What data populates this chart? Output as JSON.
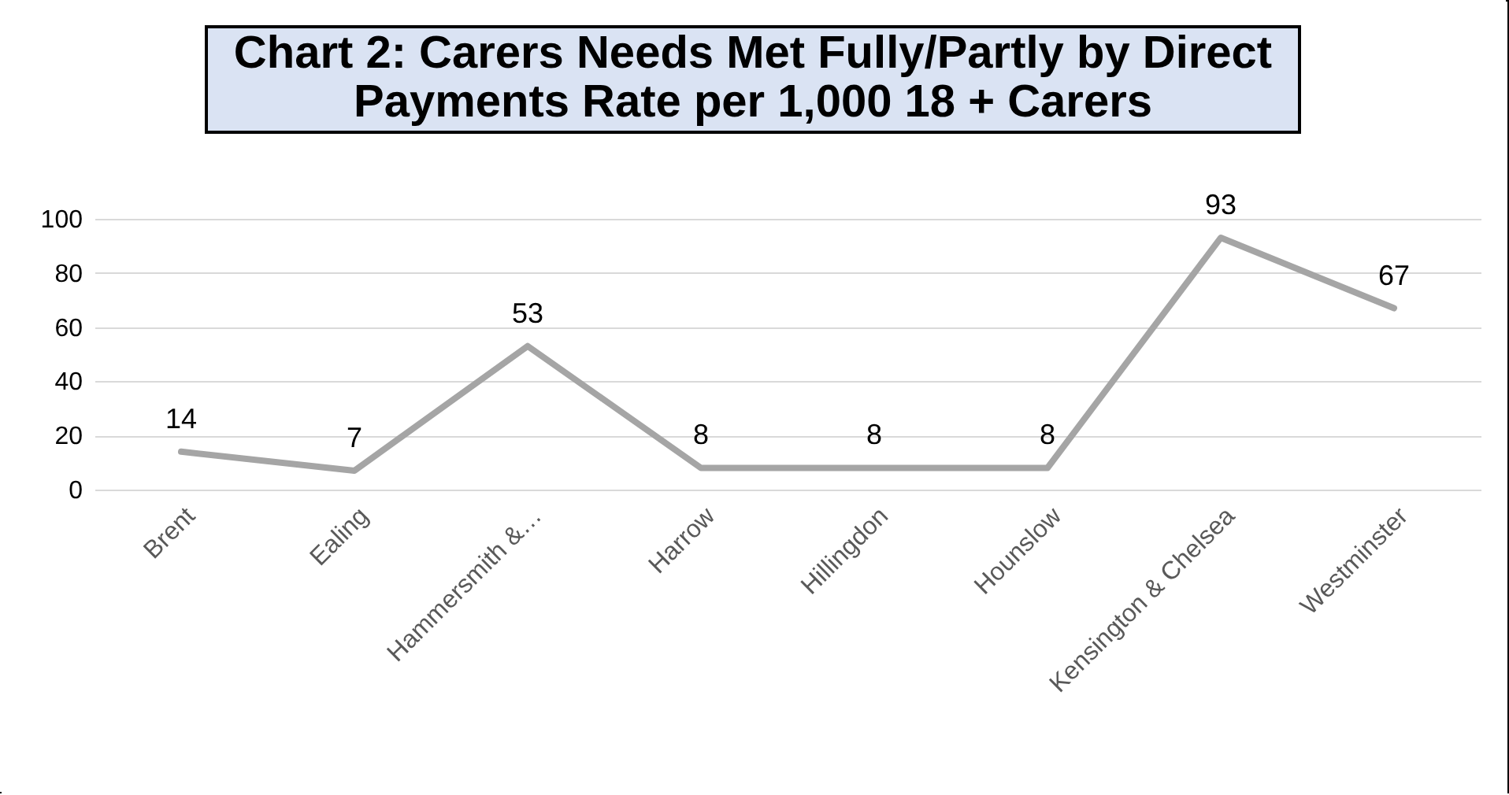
{
  "chart_data": {
    "type": "line",
    "title": "Chart 2: Carers Needs Met Fully/Partly by Direct Payments Rate per 1,000 18 + Carers",
    "categories": [
      "Brent",
      "Ealing",
      "Hammersmith &…",
      "Harrow",
      "Hillingdon",
      "Hounslow",
      "Kensington & Chelsea",
      "Westminster"
    ],
    "series": [
      {
        "color": "#a5a5a5",
        "values": [
          14,
          7,
          53,
          8,
          8,
          8,
          93,
          67
        ]
      }
    ],
    "ylim": [
      0,
      100
    ],
    "yticks": [
      0,
      20,
      40,
      60,
      80,
      100
    ],
    "grid": "y",
    "data_labels": true
  }
}
